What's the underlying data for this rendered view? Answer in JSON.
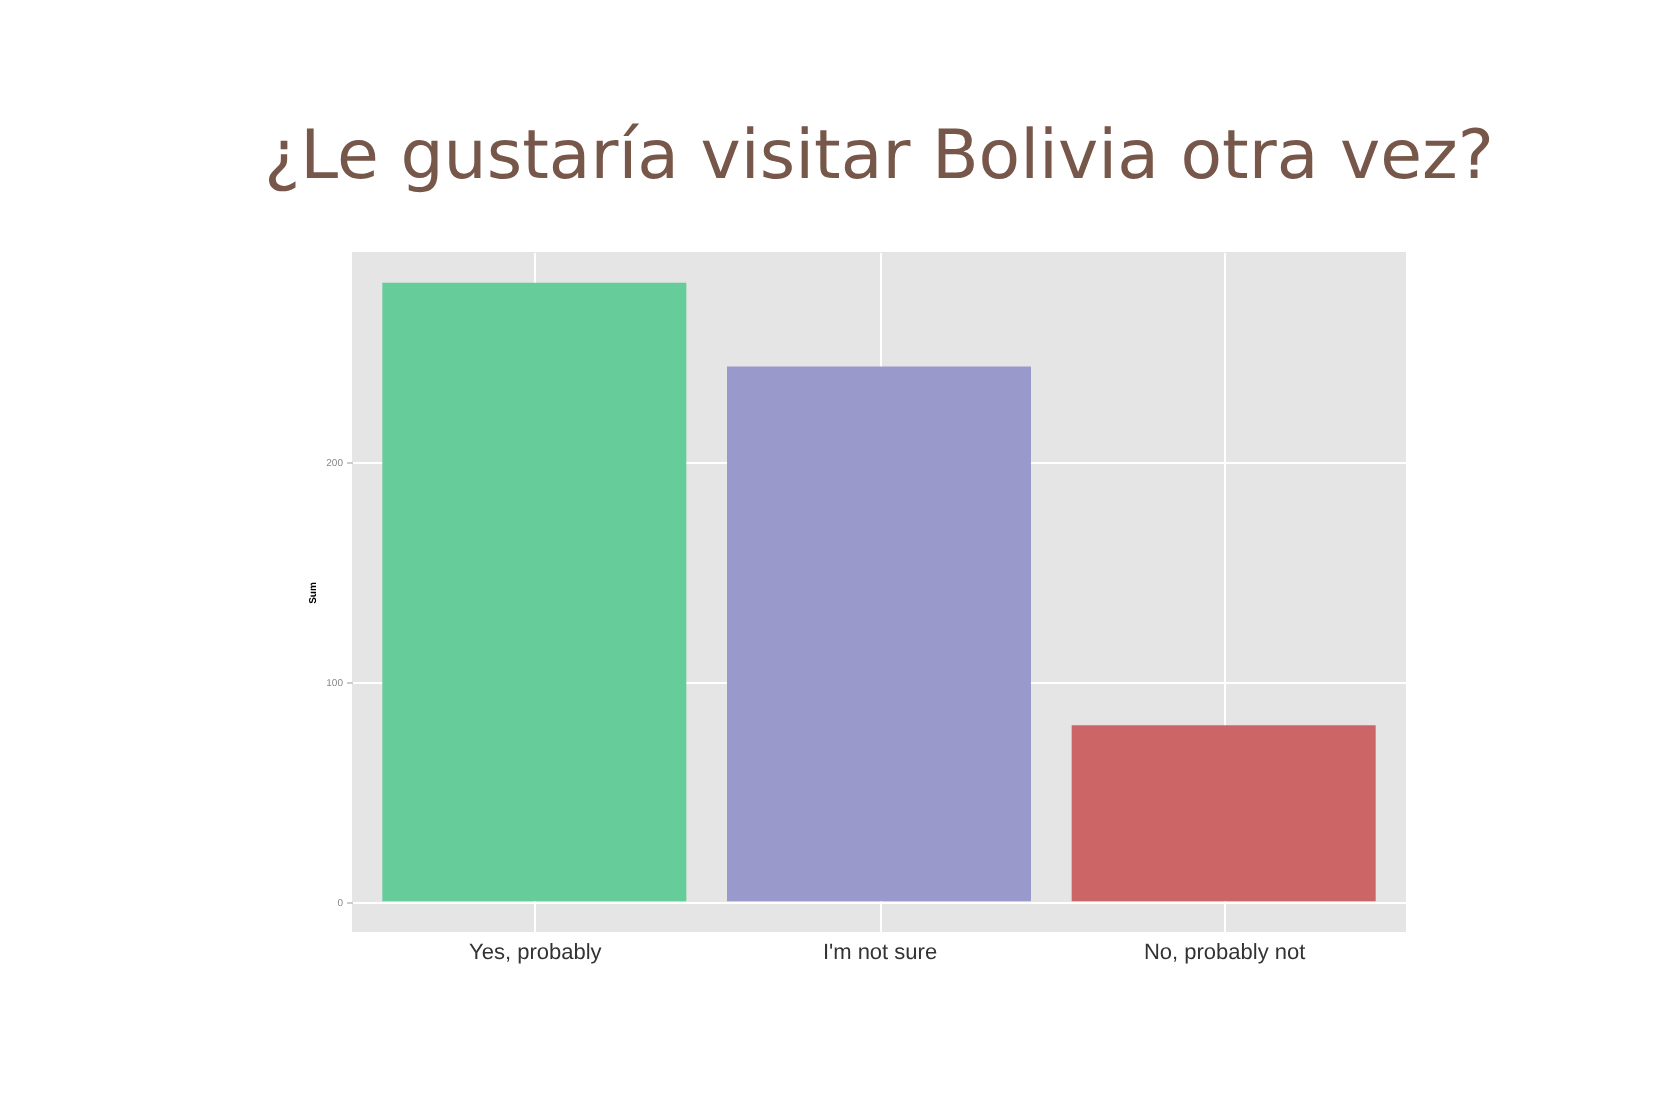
{
  "chart_data": {
    "type": "bar",
    "title": "¿Le gustaría visitar Bolivia otra vez?",
    "ylabel": "Sum",
    "categories": [
      "Yes, probably",
      "I'm not sure",
      "No, probably not"
    ],
    "values": [
      281,
      243,
      80
    ],
    "colors": [
      "#66cc99",
      "#9999cc",
      "#cc6666"
    ],
    "ylim": [
      -14,
      295
    ],
    "yticks": [
      0,
      100,
      200
    ],
    "grid": true
  }
}
